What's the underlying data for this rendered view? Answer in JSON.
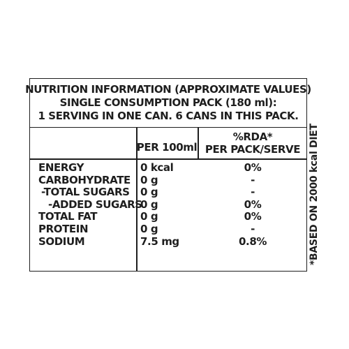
{
  "panel": {
    "title_lines": [
      "NUTRITION INFORMATION (APPROXIMATE VALUES)",
      "SINGLE CONSUMPTION PACK (180 ml):",
      "1 SERVING IN ONE CAN. 6 CANS IN THIS PACK."
    ],
    "headers": {
      "per_100": "PER 100ml",
      "rda_line1": "%RDA*",
      "rda_line2": "PER PACK/SERVE"
    },
    "rows": [
      {
        "name": "ENERGY",
        "per_100": "0 kcal",
        "rda": "0%"
      },
      {
        "name": "CARBOHYDRATE",
        "per_100": "0 g",
        "rda": "-"
      },
      {
        "name": "-TOTAL SUGARS",
        "per_100": "0 g",
        "rda": "-"
      },
      {
        "name": "-ADDED SUGARS",
        "per_100": "0 g",
        "rda": "0%"
      },
      {
        "name": "TOTAL FAT",
        "per_100": "0 g",
        "rda": "0%"
      },
      {
        "name": "PROTEIN",
        "per_100": "0 g",
        "rda": "-"
      },
      {
        "name": "SODIUM",
        "per_100": "7.5 mg",
        "rda": "0.8%"
      }
    ],
    "footnote": "*BASED ON 2000 kcal DIET"
  },
  "colors": {
    "text": "#1e1e1e",
    "background": "#ffffff"
  }
}
